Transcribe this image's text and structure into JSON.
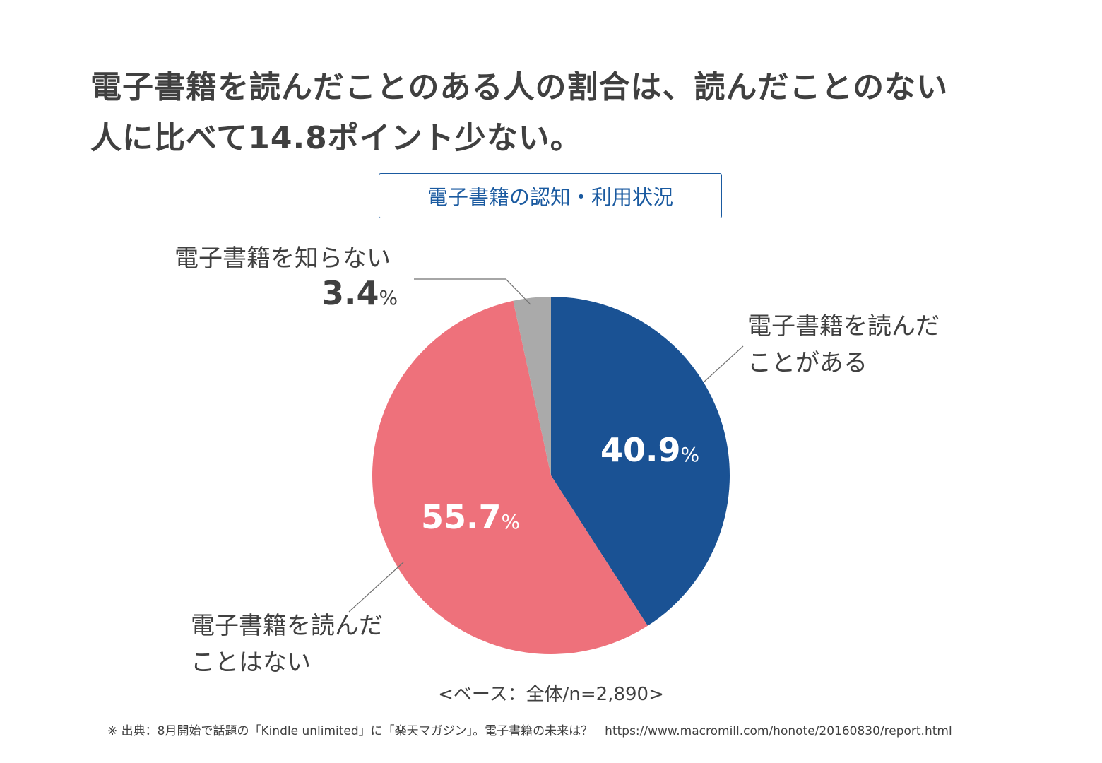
{
  "headline": {
    "line1": "電子書籍を読んだことのある人の割合は、読んだことのない",
    "line2": "人に比べて14.8ポイント少ない。"
  },
  "chart_data": {
    "type": "pie",
    "title": "電子書籍の認知・利用状況",
    "unit": "%",
    "slices": [
      {
        "label_line1": "電子書籍を読んだ",
        "label_line2": "ことがある",
        "value": 40.9,
        "value_text": "40.9",
        "color": "#1a5294"
      },
      {
        "label_line1": "電子書籍を読んだ",
        "label_line2": "ことはない",
        "value": 55.7,
        "value_text": "55.7",
        "color": "#ee717b"
      },
      {
        "label_line1": "電子書籍を知らない",
        "label_line2": "",
        "value": 3.4,
        "value_text": "3.4",
        "color": "#aaaaaa"
      }
    ]
  },
  "base_note": "<ベース：全体/n=2,890>",
  "source_note": "※ 出典：8月開始で話題の「Kindle unlimited」に「楽天マガジン」。電子書籍の未来は？　https://www.macromill.com/honote/20160830/report.html"
}
